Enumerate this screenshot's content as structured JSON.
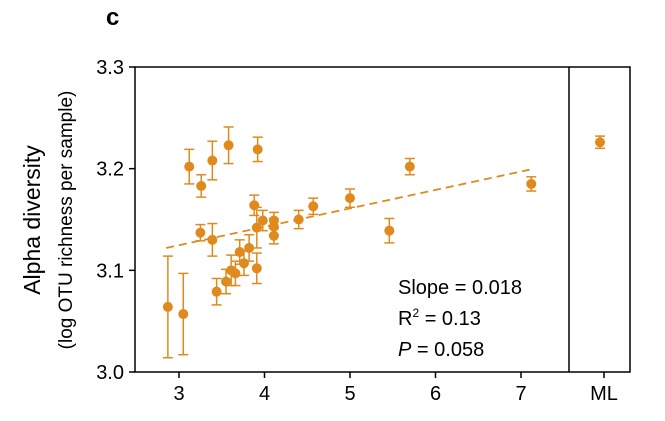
{
  "panel_label": "c",
  "colors": {
    "point": "#E08A1E",
    "axis": "#000000"
  },
  "chart_data": {
    "type": "scatter",
    "ylabel": "Alpha diversity",
    "ylabel2": "(log OTU richness per sample)",
    "xlabel": "",
    "xlim": [
      2.45,
      7.55
    ],
    "ylim": [
      3.0,
      3.3
    ],
    "xticks": [
      3,
      4,
      5,
      6,
      7
    ],
    "yticks": [
      "3.0",
      "3.1",
      "3.2",
      "3.3"
    ],
    "extra_category": "ML",
    "points": [
      {
        "x": 2.87,
        "y": 3.064,
        "err": 0.05
      },
      {
        "x": 3.05,
        "y": 3.057,
        "err": 0.04
      },
      {
        "x": 3.12,
        "y": 3.202,
        "err": 0.017
      },
      {
        "x": 3.26,
        "y": 3.183,
        "err": 0.011
      },
      {
        "x": 3.39,
        "y": 3.208,
        "err": 0.019
      },
      {
        "x": 3.58,
        "y": 3.223,
        "err": 0.018
      },
      {
        "x": 3.92,
        "y": 3.219,
        "err": 0.012
      },
      {
        "x": 3.25,
        "y": 3.137,
        "err": 0.008
      },
      {
        "x": 3.39,
        "y": 3.13,
        "err": 0.016
      },
      {
        "x": 3.44,
        "y": 3.079,
        "err": 0.013
      },
      {
        "x": 3.55,
        "y": 3.089,
        "err": 0.012
      },
      {
        "x": 3.61,
        "y": 3.1,
        "err": 0.015
      },
      {
        "x": 3.66,
        "y": 3.097,
        "err": 0.012
      },
      {
        "x": 3.71,
        "y": 3.118,
        "err": 0.012
      },
      {
        "x": 3.76,
        "y": 3.107,
        "err": 0.012
      },
      {
        "x": 3.82,
        "y": 3.122,
        "err": 0.013
      },
      {
        "x": 3.88,
        "y": 3.164,
        "err": 0.01
      },
      {
        "x": 3.91,
        "y": 3.142,
        "err": 0.02
      },
      {
        "x": 3.91,
        "y": 3.102,
        "err": 0.015
      },
      {
        "x": 3.98,
        "y": 3.149,
        "err": 0.01
      },
      {
        "x": 4.11,
        "y": 3.149,
        "err": 0.008
      },
      {
        "x": 4.11,
        "y": 3.143,
        "err": 0.008
      },
      {
        "x": 4.11,
        "y": 3.134,
        "err": 0.008
      },
      {
        "x": 4.4,
        "y": 3.15,
        "err": 0.009
      },
      {
        "x": 4.57,
        "y": 3.163,
        "err": 0.008
      },
      {
        "x": 5.0,
        "y": 3.171,
        "err": 0.009
      },
      {
        "x": 5.46,
        "y": 3.139,
        "err": 0.012
      },
      {
        "x": 5.7,
        "y": 3.202,
        "err": 0.008
      },
      {
        "x": 7.12,
        "y": 3.185,
        "err": 0.007
      }
    ],
    "ml_point": {
      "y": 3.226,
      "err": 0.006
    },
    "trend": {
      "x": [
        2.85,
        7.1
      ],
      "y": [
        3.122,
        3.199
      ]
    },
    "annotations": {
      "slope": "Slope = 0.018",
      "r2_prefix": "R",
      "r2_sup": "2",
      "r2_suffix": " = 0.13",
      "p_label": "P",
      "p_suffix": " = 0.058"
    }
  }
}
